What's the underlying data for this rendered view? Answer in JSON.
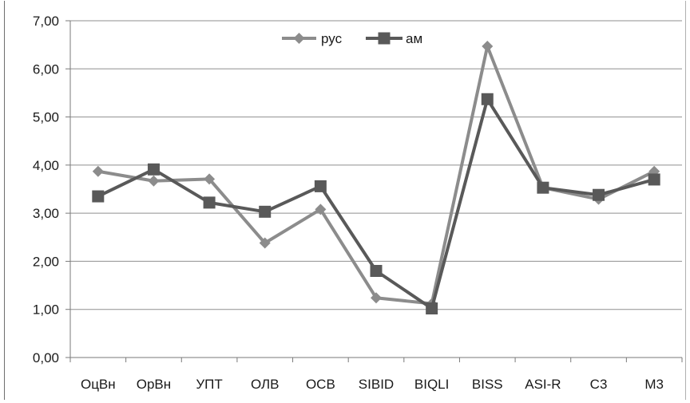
{
  "chart_data": {
    "type": "line",
    "categories": [
      "ОцВн",
      "ОрВн",
      "УПТ",
      "ОЛВ",
      "ОСВ",
      "SIBID",
      "BIQLI",
      "BISS",
      "ASI-R",
      "С3",
      "М3"
    ],
    "ylim": [
      0,
      7
    ],
    "y_ticks": [
      "0,00",
      "1,00",
      "2,00",
      "3,00",
      "4,00",
      "5,00",
      "6,00",
      "7,00"
    ],
    "grid": true,
    "legend_position": "top-center",
    "series": [
      {
        "name": "рус",
        "marker": "diamond",
        "color": "#8c8c8c",
        "values": [
          3.87,
          3.67,
          3.71,
          2.38,
          3.08,
          1.24,
          1.12,
          6.47,
          3.53,
          3.29,
          3.87
        ]
      },
      {
        "name": "ам",
        "marker": "square",
        "color": "#595959",
        "values": [
          3.35,
          3.91,
          3.22,
          3.03,
          3.56,
          1.8,
          1.02,
          5.37,
          3.53,
          3.38,
          3.7
        ]
      }
    ]
  }
}
